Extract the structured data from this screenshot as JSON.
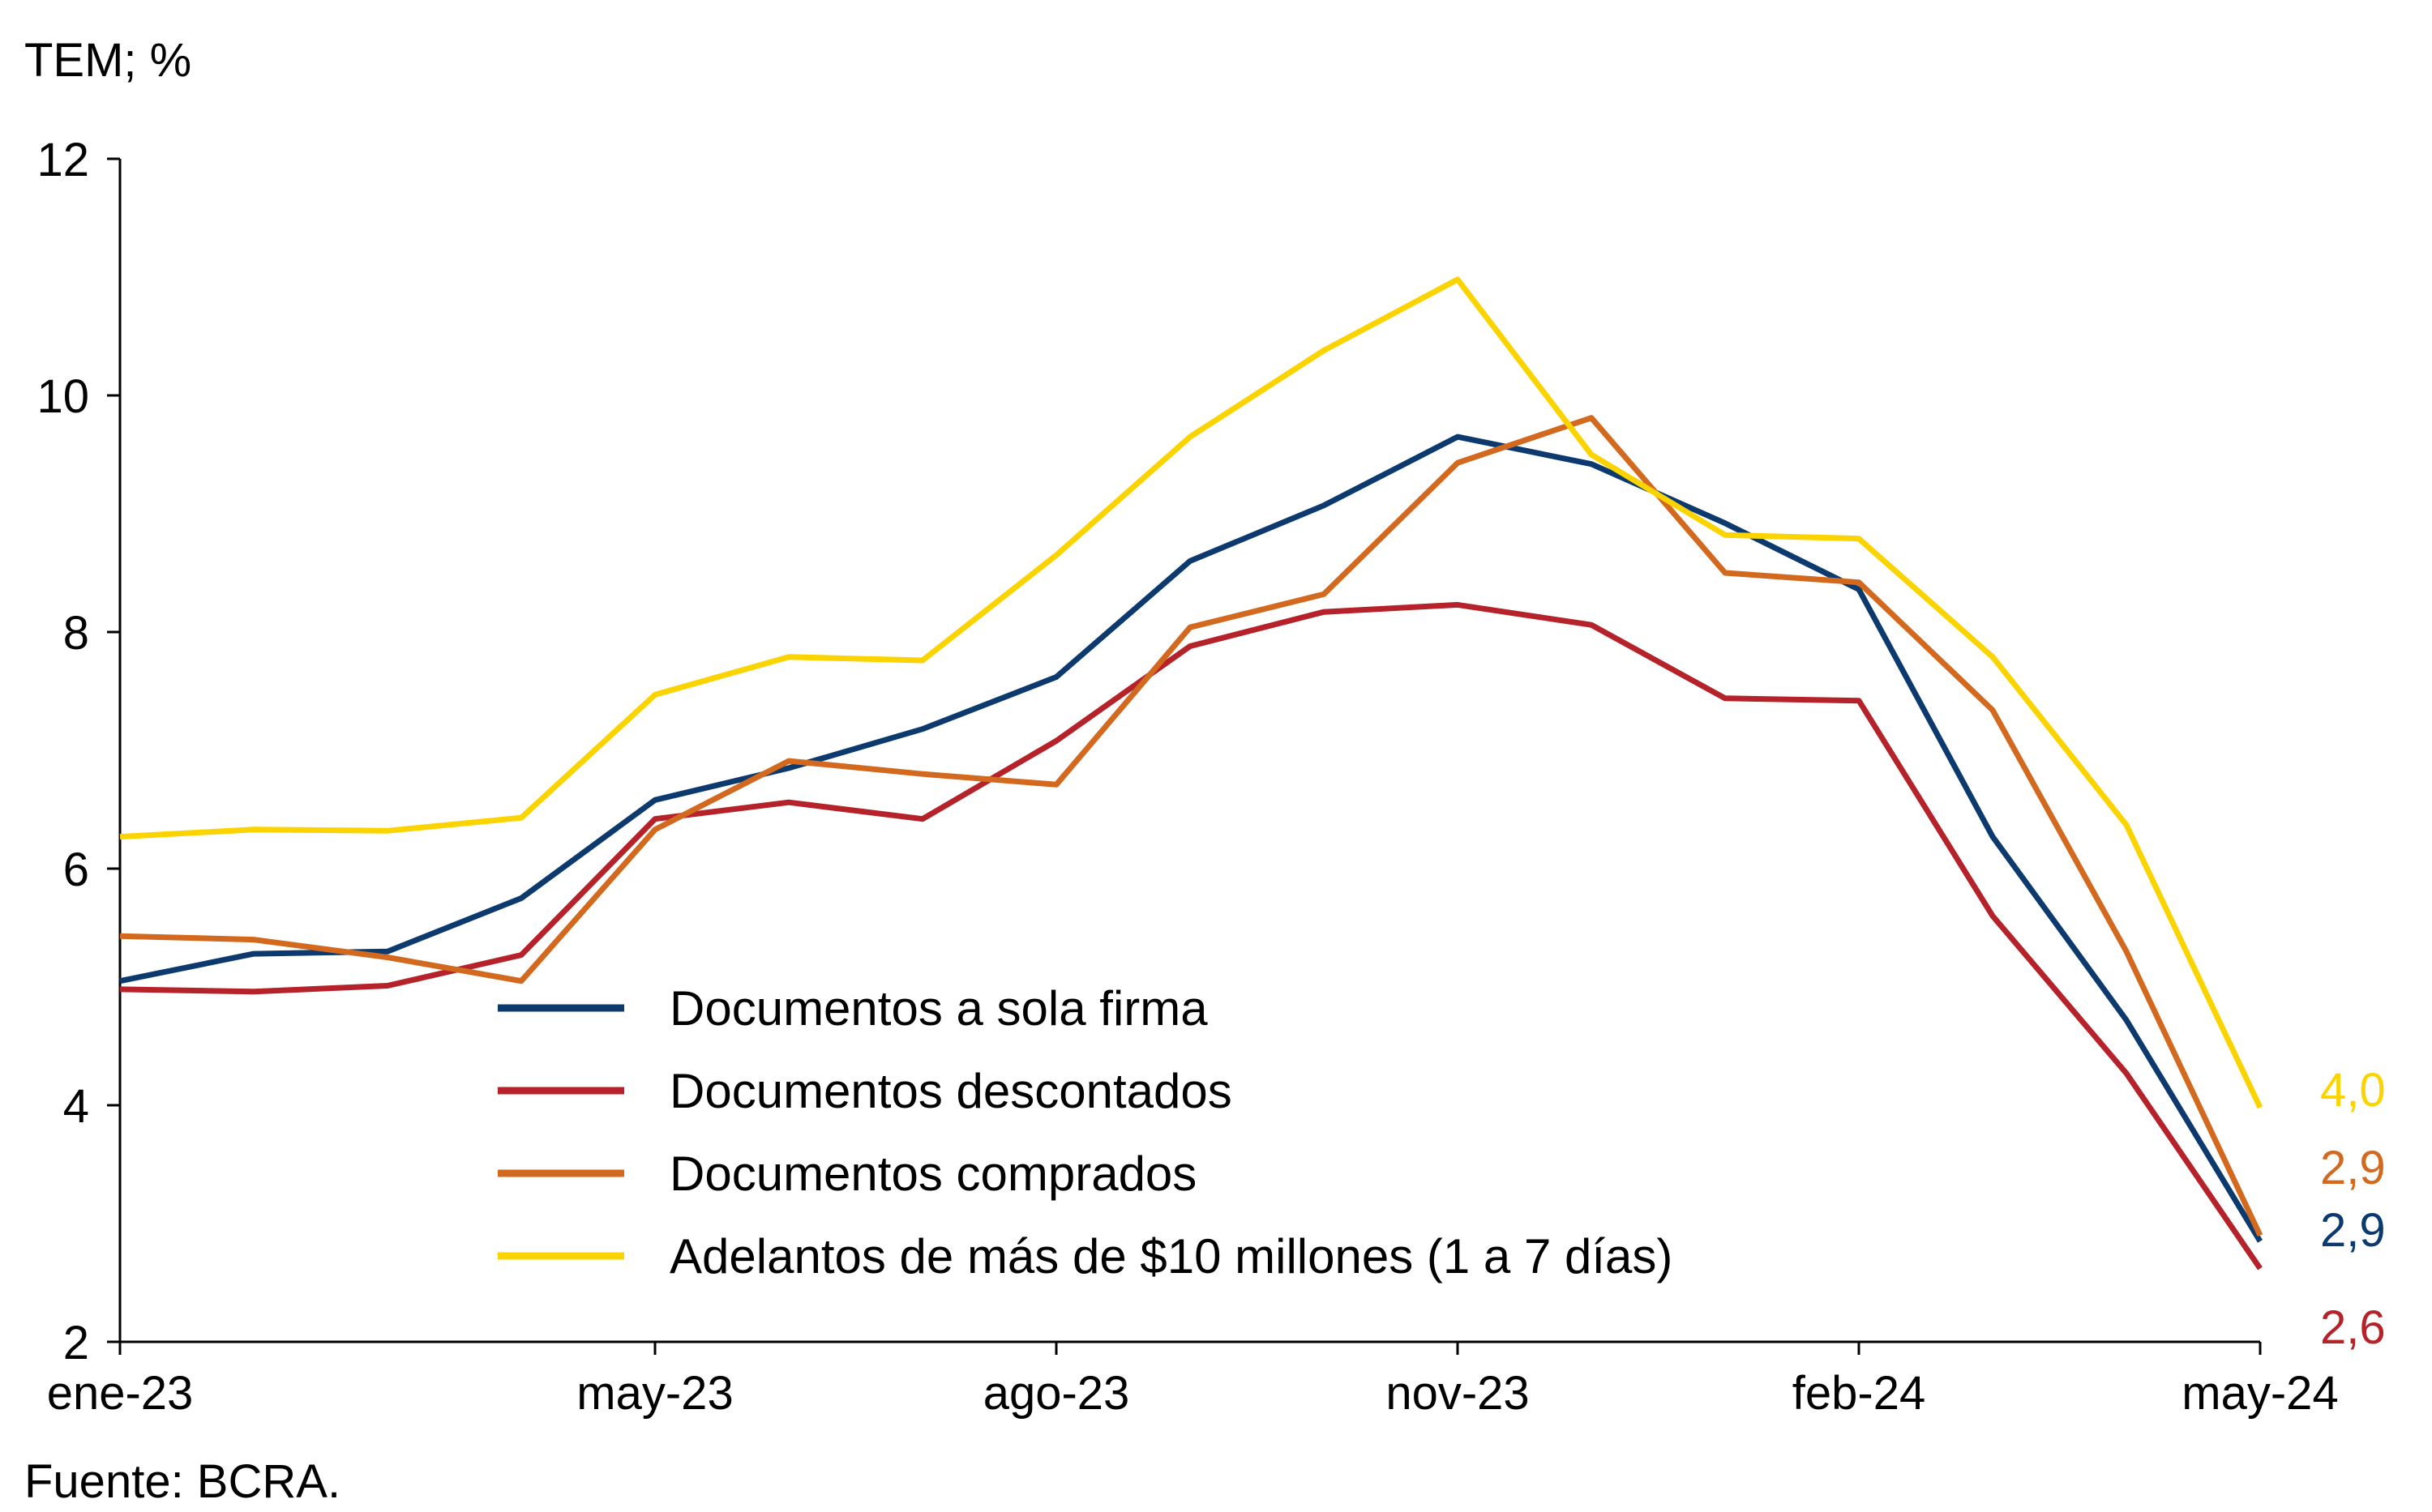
{
  "chart_data": {
    "type": "line",
    "unit_label": "TEM; %",
    "source": "Fuente: BCRA.",
    "x": [
      "ene-23",
      "feb-23",
      "mar-23",
      "abr-23",
      "may-23",
      "jun-23",
      "jul-23",
      "ago-23",
      "sep-23",
      "oct-23",
      "nov-23",
      "dic-23",
      "ene-24",
      "feb-24",
      "mar-24",
      "abr-24",
      "may-24"
    ],
    "x_tick_labels": [
      "ene-23",
      "may-23",
      "ago-23",
      "nov-23",
      "feb-24",
      "may-24"
    ],
    "y_tick_labels": [
      "2",
      "4",
      "6",
      "8",
      "10",
      "12"
    ],
    "ylim": [
      2,
      12
    ],
    "legend_position": "bottom-center",
    "grid": false,
    "series": [
      {
        "name": "Documentos a sola firma",
        "color": "#0d3a6e",
        "values": [
          5.05,
          5.28,
          5.3,
          5.75,
          6.58,
          6.85,
          7.18,
          7.62,
          8.6,
          9.07,
          9.65,
          9.42,
          8.92,
          8.36,
          6.27,
          4.72,
          2.85
        ],
        "end_label": "2,9"
      },
      {
        "name": "Documentos descontados",
        "color": "#b5222a",
        "values": [
          4.98,
          4.96,
          5.01,
          5.27,
          6.42,
          6.56,
          6.42,
          7.08,
          7.88,
          8.17,
          8.23,
          8.06,
          7.44,
          7.42,
          5.6,
          4.27,
          2.62
        ],
        "end_label": "2,6"
      },
      {
        "name": "Documentos comprados",
        "color": "#d2691e",
        "values": [
          5.43,
          5.4,
          5.25,
          5.05,
          6.33,
          6.91,
          6.8,
          6.71,
          8.04,
          8.32,
          9.43,
          9.81,
          8.5,
          8.42,
          7.34,
          5.3,
          2.9
        ],
        "end_label": "2,9"
      },
      {
        "name": "Adelantos de más de $10 millones (1 a 7 días)",
        "color": "#fbd400",
        "values": [
          6.27,
          6.33,
          6.32,
          6.43,
          7.47,
          7.79,
          7.76,
          8.65,
          9.65,
          10.38,
          10.98,
          9.5,
          8.82,
          8.79,
          7.79,
          6.37,
          3.98
        ],
        "end_label": "4,0"
      }
    ]
  }
}
